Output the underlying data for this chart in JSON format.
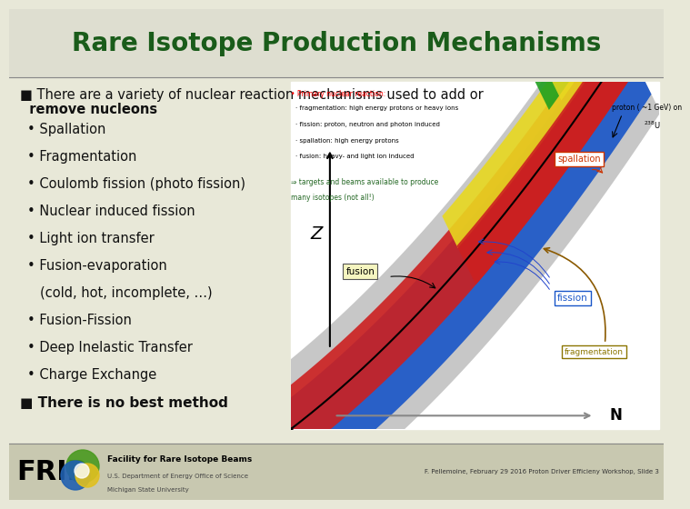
{
  "title": "Rare Isotope Production Mechanisms",
  "title_color": "#1a5c1a",
  "title_fontsize": 20,
  "bg_color": "#e8e8d8",
  "body_bg": "#e8e8d8",
  "text_color": "#111111",
  "bullet_color": "#111111",
  "intro_line1": "■ There are a variety of nuclear reaction mechanisms used to add or",
  "intro_line2": "  remove nucleons",
  "bullet_items": [
    "Spallation",
    "Fragmentation",
    "Coulomb fission (photo fission)",
    "Nuclear induced fission",
    "Light ion transfer",
    "Fusion-evaporation",
    "  (cold, hot, incomplete, …)",
    "Fusion-Fission",
    "Deep Inelastic Transfer",
    "Charge Exchange"
  ],
  "bottom_bullet": "■ There is no best method",
  "footer_frib": "FRIB",
  "footer_sub1": "Facility for Rare Isotope Beams",
  "footer_sub2": "U.S. Department of Energy Office of Science",
  "footer_sub3": "Michigan State University",
  "footer_right": "F. Pellemoine, February 29 2016 Proton Driver Efficieny Workshop, Slide 3",
  "chart_text_red_title": "• Primary nuclear reaction:",
  "chart_text_black": [
    "· fragmentation: high energy protons or heavy ions",
    "· fission: proton, neutron and photon induced",
    "· spallation: high energy protons",
    "· fusion: heavy- and light ion induced"
  ],
  "chart_text_green1": "⇒ targets and beams available to produce",
  "chart_text_green2": "many isotopes (not all!)",
  "chart_proton_label": "proton ( ~1 GeV) on ",
  "chart_proton_isotope": "238U"
}
